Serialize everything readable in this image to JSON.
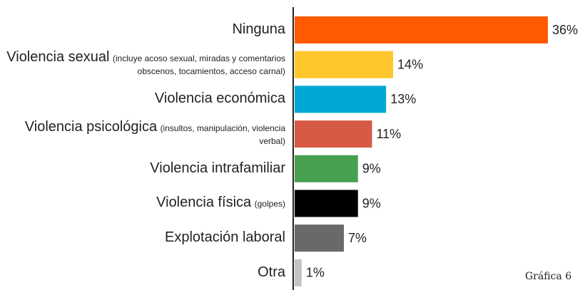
{
  "chart_data": {
    "type": "bar",
    "orientation": "horizontal",
    "categories": [
      "Ninguna",
      "Violencia sexual",
      "Violencia económica",
      "Violencia psicológica",
      "Violencia intrafamiliar",
      "Violencia física",
      "Explotación laboral",
      "Otra"
    ],
    "category_notes": [
      null,
      "(incluye acoso sexual, miradas y comentarios obscenos, tocamientos, acceso carnal)",
      null,
      "(insultos, manipulación, violencia verbal)",
      null,
      "(golpes)",
      null,
      null
    ],
    "values": [
      36,
      14,
      13,
      11,
      9,
      9,
      7,
      1
    ],
    "value_labels": [
      "36%",
      "14%",
      "13%",
      "11%",
      "9%",
      "9%",
      "7%",
      "1%"
    ],
    "colors": [
      "#ff5a00",
      "#ffc72c",
      "#00a9d4",
      "#d65a46",
      "#46a050",
      "#000000",
      "#696969",
      "#c4c4c4"
    ],
    "xlim": [
      0,
      36
    ],
    "caption": "Gráfica 6"
  }
}
